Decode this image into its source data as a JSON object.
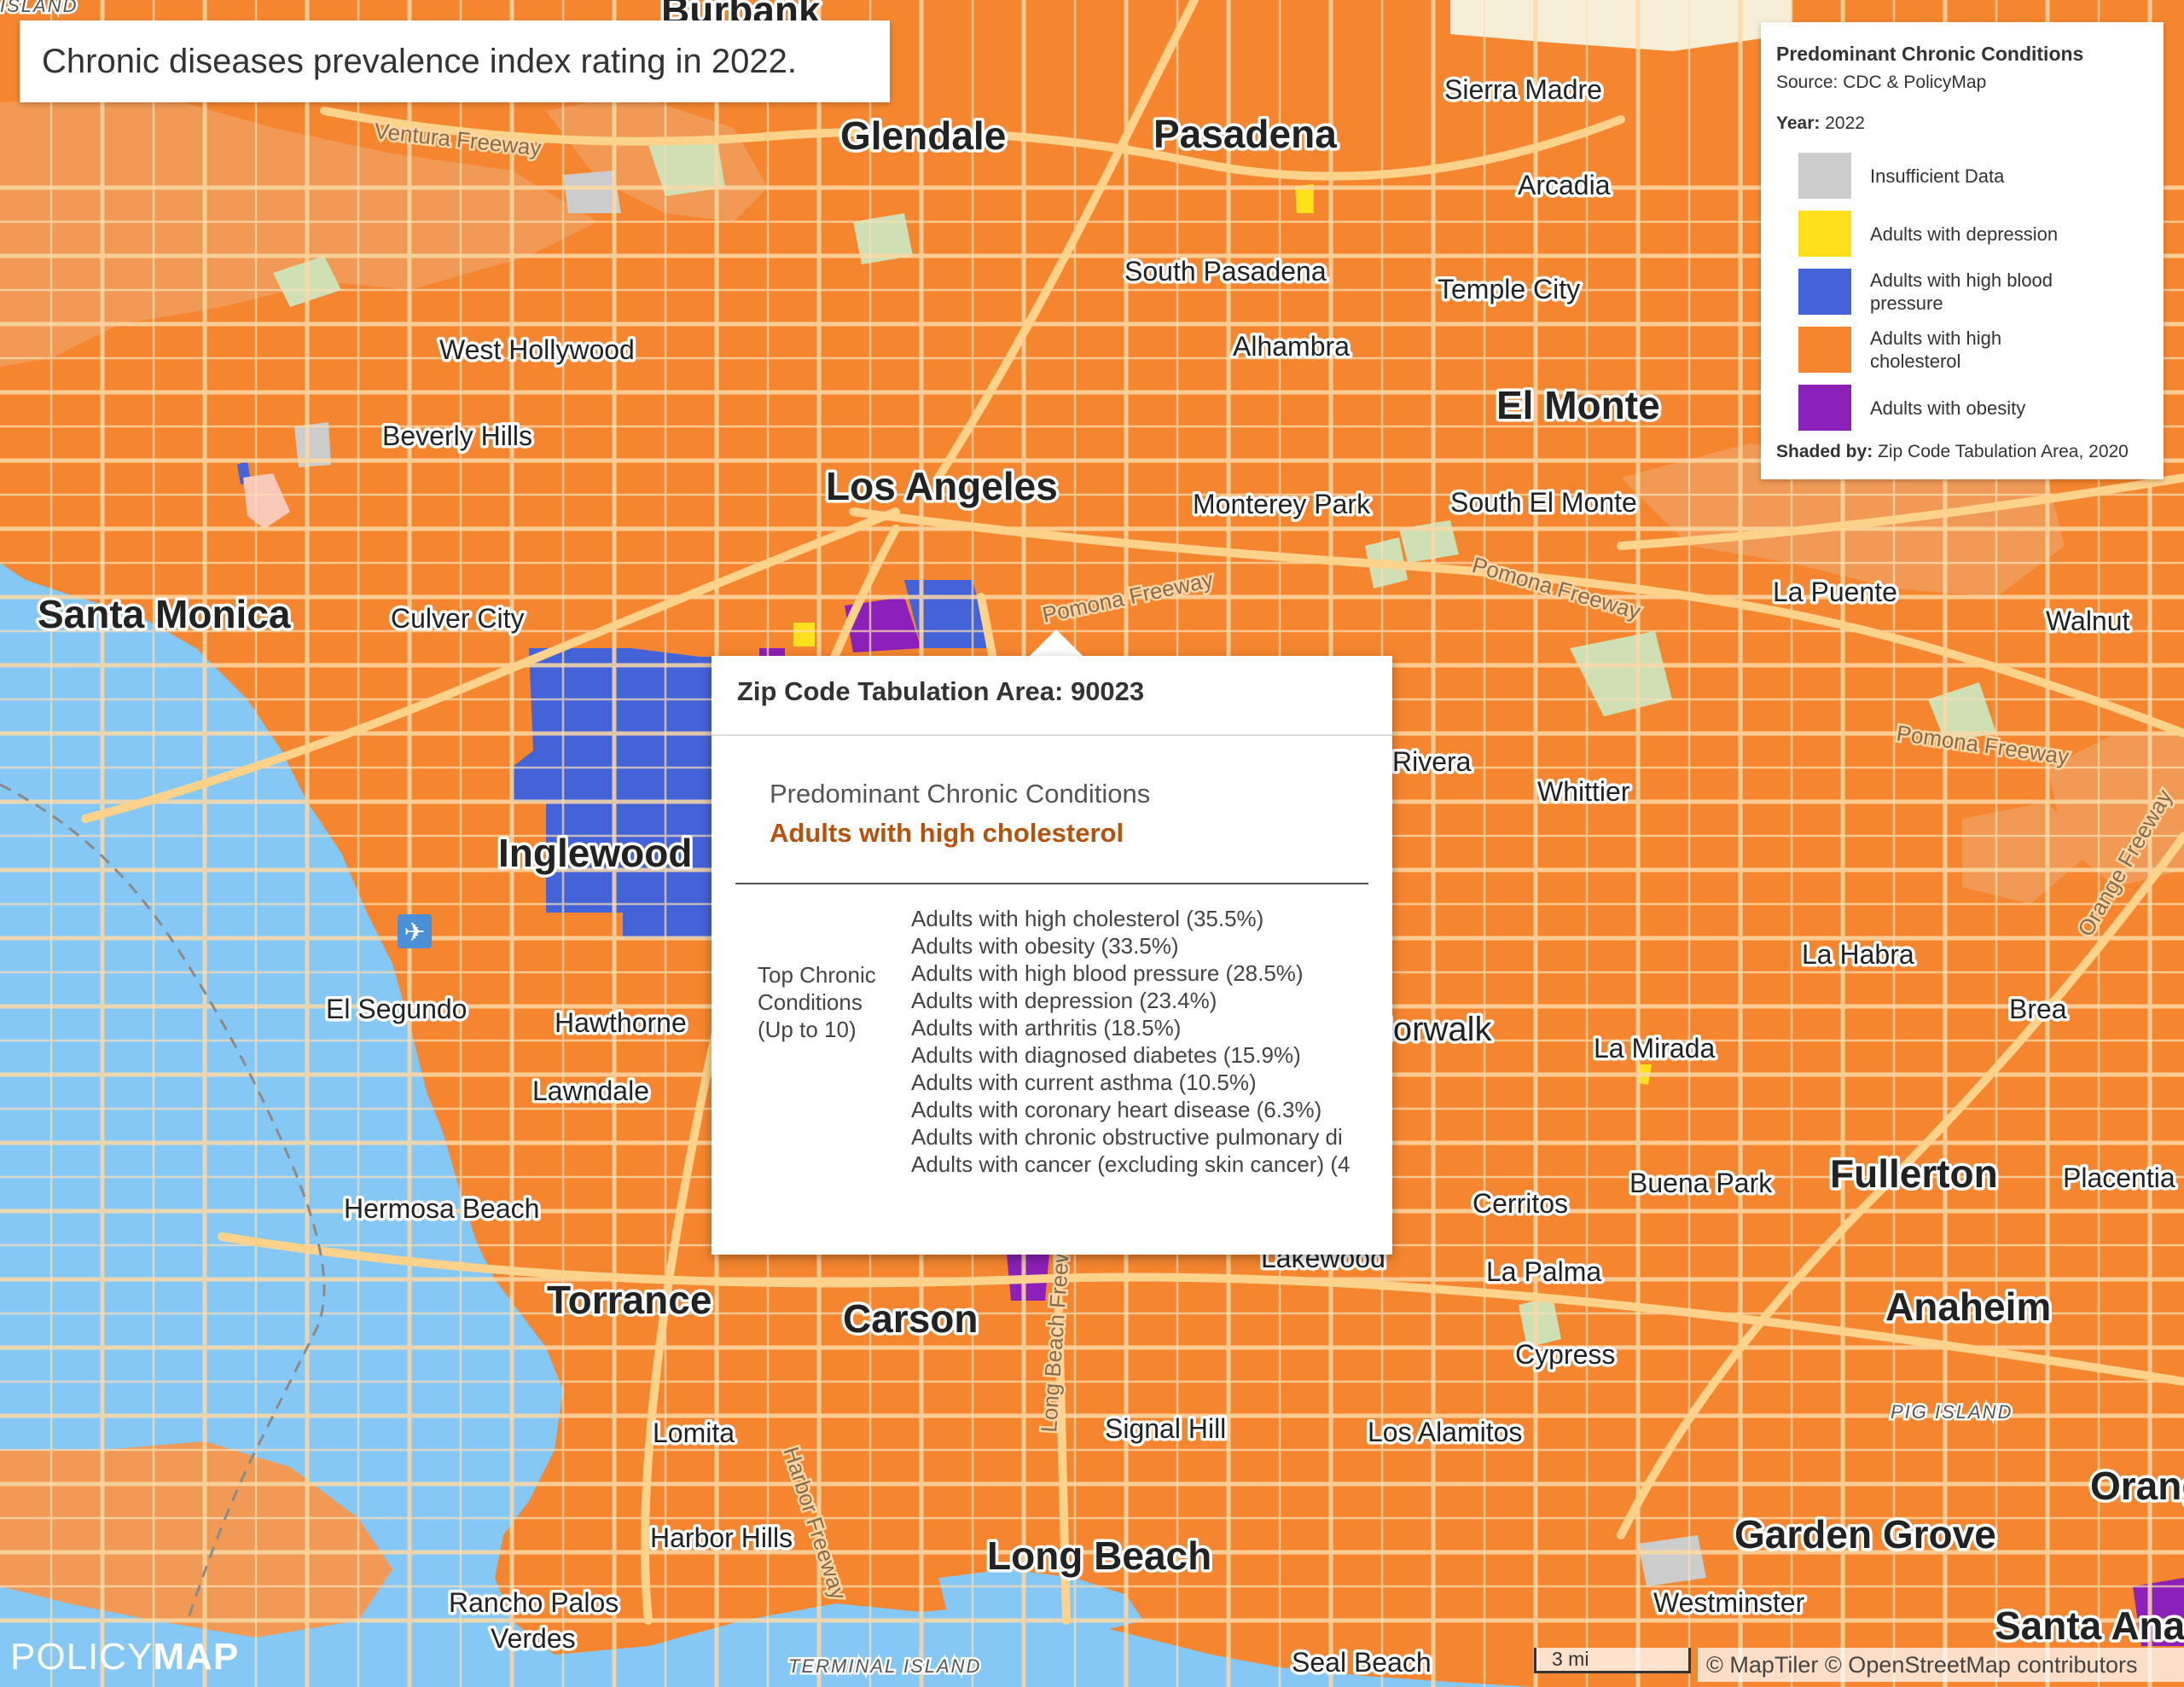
{
  "title": "Chronic diseases prevalence index rating in 2022.",
  "legend": {
    "title": "Predominant Chronic Conditions",
    "source": "Source: CDC & PolicyMap",
    "year_label": "Year:",
    "year_value": "2022",
    "items": [
      {
        "label": "Insufficient Data",
        "color": "#cccccc"
      },
      {
        "label": "Adults with depression",
        "color": "#ffe01a"
      },
      {
        "label": "Adults with high blood pressure",
        "color": "#4563d8"
      },
      {
        "label": "Adults with high cholesterol",
        "color": "#f5862f"
      },
      {
        "label": "Adults with obesity",
        "color": "#8b21b8"
      }
    ],
    "shaded_label": "Shaded by:",
    "shaded_value": "Zip Code Tabulation Area, 2020"
  },
  "popup": {
    "header": "Zip Code Tabulation Area: 90023",
    "section_label": "Predominant Chronic Conditions",
    "section_value": "Adults with high cholesterol",
    "row_label": "Top Chronic Conditions (Up to 10)",
    "conditions": [
      "Adults with high cholesterol (35.5%)",
      "Adults with obesity (33.5%)",
      "Adults with high blood pressure (28.5%)",
      "Adults with depression (23.4%)",
      "Adults with arthritis (18.5%)",
      "Adults with diagnosed diabetes (15.9%)",
      "Adults with current asthma (10.5%)",
      "Adults with coronary heart disease (6.3%)",
      "Adults with chronic obstructive pulmonary di",
      "Adults with cancer (excluding skin cancer) (4"
    ]
  },
  "map": {
    "cities_major": [
      "Glendale",
      "Pasadena",
      "Los Angeles",
      "Santa Monica",
      "Inglewood",
      "El Monte",
      "Torrance",
      "Carson",
      "Long Beach",
      "Fullerton",
      "Anaheim",
      "Garden Grove",
      "Burbank",
      "Santa Ana",
      "Orange"
    ],
    "cities_mid": [
      "Sierra Madre",
      "Arcadia",
      "South Pasadena",
      "Temple City",
      "West Hollywood",
      "Alhambra",
      "Beverly Hills",
      "Monterey Park",
      "South El Monte",
      "Culver City",
      "La Puente",
      "Walnut",
      "Whittier",
      "Rivera",
      "La Habra",
      "Brea",
      "El Segundo",
      "Hawthorne",
      "Lawndale",
      "La Mirada",
      "Norwalk",
      "Hermosa Beach",
      "Cerritos",
      "Buena Park",
      "Placentia",
      "Lakewood",
      "La Palma",
      "Cypress",
      "Lomita",
      "Signal Hill",
      "Los Alamitos",
      "Harbor Hills",
      "Rancho Palos",
      "Verdes",
      "Westminster",
      "Seal Beach"
    ],
    "roads": [
      "Ventura Freeway",
      "Pomona Freeway",
      "Pomona Freeway",
      "Pomona Freeway",
      "Harbor Freeway",
      "Long Beach Freeway",
      "Orange Freeway"
    ],
    "islands": [
      "PIG ISLAND",
      "TERMINAL ISLAND",
      "ISLAND"
    ]
  },
  "logo": {
    "part1": "POLICY",
    "part2": "MAP"
  },
  "scale": "3 mi",
  "attribution": "© MapTiler © OpenStreetMap contributors"
}
